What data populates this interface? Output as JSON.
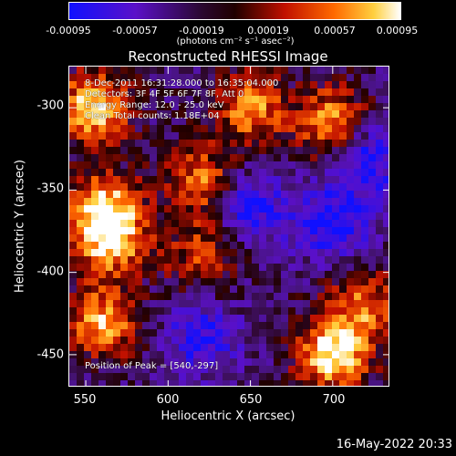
{
  "colorbar": {
    "ticks": [
      "-0.00095",
      "-0.00057",
      "-0.00019",
      "0.00019",
      "0.00057",
      "0.00095"
    ],
    "unit": "(photons cm⁻² s⁻¹ asec⁻²)"
  },
  "title": "Reconstructed RHESSI Image",
  "info": {
    "line1": "8-Dec-2011 16:31:28.000 to 16:35:04.000",
    "line2": "Detectors: 3F 4F 5F 6F 7F 8F, Att 0",
    "line3": "Energy Range: 12.0 - 25.0 keV",
    "line4": "Clean     Total counts: 1.18E+04",
    "peak": "Position of Peak = [540,-297]"
  },
  "footer": {
    "date": "16-May-2022 20:33"
  },
  "chart_data": {
    "type": "heatmap",
    "title": "Reconstructed RHESSI Image",
    "xlabel": "Heliocentric X (arcsec)",
    "ylabel": "Heliocentric Y (arcsec)",
    "xlim": [
      540,
      735
    ],
    "ylim": [
      -470,
      -275
    ],
    "xticks": [
      550,
      600,
      650,
      700
    ],
    "yticks": [
      -300,
      -350,
      -400,
      -450
    ],
    "colorbar_range": [
      -0.00095,
      0.00095
    ],
    "colormap": "blue-purple-black-red-yellow-white",
    "peak": [
      540,
      -297
    ],
    "bright_regions": [
      {
        "x": 555,
        "y": -300,
        "level": 0.85
      },
      {
        "x": 560,
        "y": -360,
        "level": 0.7
      },
      {
        "x": 565,
        "y": -380,
        "level": 0.75
      },
      {
        "x": 560,
        "y": -430,
        "level": 0.7
      },
      {
        "x": 620,
        "y": -345,
        "level": 0.6
      },
      {
        "x": 650,
        "y": -300,
        "level": 0.65
      },
      {
        "x": 700,
        "y": -310,
        "level": 0.75
      },
      {
        "x": 700,
        "y": -450,
        "level": 0.9
      },
      {
        "x": 720,
        "y": -420,
        "level": 0.55
      },
      {
        "x": 620,
        "y": -390,
        "level": 0.45
      }
    ],
    "dim_regions": [
      {
        "x": 650,
        "y": -360,
        "level": -0.5
      },
      {
        "x": 700,
        "y": -370,
        "level": -0.55
      },
      {
        "x": 620,
        "y": -440,
        "level": -0.45
      },
      {
        "x": 720,
        "y": -330,
        "level": -0.6
      }
    ]
  }
}
